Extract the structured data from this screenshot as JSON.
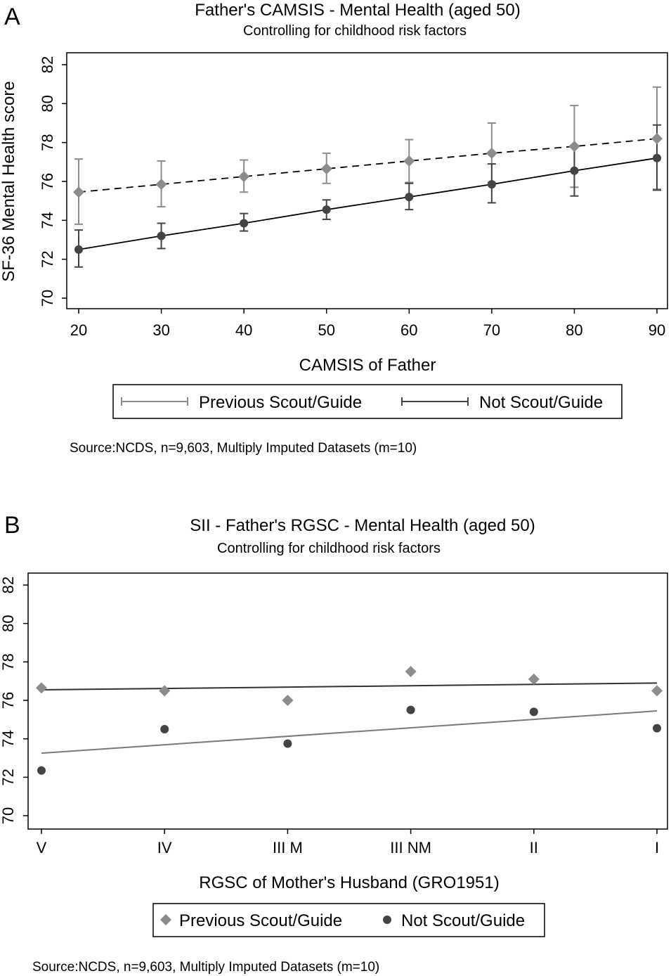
{
  "colors": {
    "previous": "#8c8c8c",
    "not": "#444444",
    "frame": "#000000",
    "plot_bg": "#ffffff"
  },
  "chart_data": [
    {
      "panel": "A",
      "type": "line",
      "title": "Father's CAMSIS - Mental Health (aged 50)",
      "subtitle": "Controlling for childhood risk factors",
      "xlabel": "CAMSIS of Father",
      "ylabel": "SF-36 Mental Health score",
      "xlim": [
        16,
        92
      ],
      "ylim": [
        69.5,
        83
      ],
      "xticks": [
        20,
        30,
        40,
        50,
        60,
        70,
        80,
        90
      ],
      "yticks": [
        70,
        72,
        74,
        76,
        78,
        80,
        82
      ],
      "error_bars": true,
      "legend": {
        "position": "bottom",
        "marker": "error-bar"
      },
      "note": "Source:NCDS, n=9,603, Multiply Imputed Datasets (m=10)",
      "series": [
        {
          "name": "Previous Scout/Guide",
          "marker": "diamond",
          "line": "dashed",
          "x": [
            20,
            30,
            40,
            50,
            60,
            70,
            80,
            90
          ],
          "y": [
            75.45,
            75.85,
            76.25,
            76.65,
            77.05,
            77.45,
            77.8,
            78.2
          ],
          "lower": [
            73.8,
            74.7,
            75.45,
            75.9,
            75.95,
            75.95,
            75.7,
            75.6
          ],
          "upper": [
            77.15,
            77.05,
            77.1,
            77.45,
            78.15,
            79.0,
            79.9,
            80.85
          ]
        },
        {
          "name": "Not Scout/Guide",
          "marker": "circle",
          "line": "solid",
          "x": [
            20,
            30,
            40,
            50,
            60,
            70,
            80,
            90
          ],
          "y": [
            72.5,
            73.2,
            73.85,
            74.55,
            75.2,
            75.85,
            76.55,
            77.2
          ],
          "lower": [
            71.6,
            72.55,
            73.45,
            74.05,
            74.55,
            74.9,
            75.25,
            75.55
          ],
          "upper": [
            73.5,
            73.85,
            74.35,
            75.05,
            75.9,
            76.9,
            77.85,
            78.9
          ]
        }
      ]
    },
    {
      "panel": "B",
      "type": "scatter",
      "title": "SII - Father's RGSC - Mental Health (aged 50)",
      "subtitle": "Controlling for childhood risk factors",
      "xlabel": "RGSC of Mother's Husband (GRO1951)",
      "ylabel": "",
      "categories": [
        "V",
        "IV",
        "III M",
        "III NM",
        "II",
        "I"
      ],
      "ylim": [
        69.5,
        83
      ],
      "yticks": [
        70,
        72,
        74,
        76,
        78,
        80,
        82
      ],
      "legend": {
        "position": "bottom",
        "marker": "point"
      },
      "note": "Source:NCDS, n=9,603, Multiply Imputed Datasets (m=10)",
      "series": [
        {
          "name": "Previous Scout/Guide",
          "marker": "diamond",
          "values": [
            76.65,
            76.5,
            76.0,
            77.5,
            77.1,
            76.5
          ],
          "fit_line": [
            76.55,
            76.9
          ]
        },
        {
          "name": "Not Scout/Guide",
          "marker": "circle",
          "values": [
            72.35,
            74.5,
            73.75,
            75.5,
            75.4,
            74.55
          ],
          "fit_line": [
            73.25,
            75.45
          ]
        }
      ]
    }
  ]
}
